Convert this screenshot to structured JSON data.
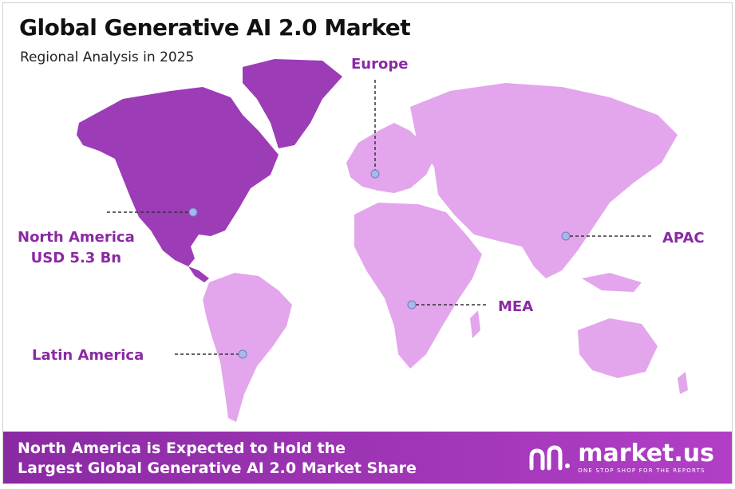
{
  "header": {
    "title": "Global Generative AI 2.0 Market",
    "subtitle": "Regional Analysis in 2025"
  },
  "regions": {
    "europe": "Europe",
    "north_america": "North America",
    "north_america_value": "USD 5.3 Bn",
    "apac": "APAC",
    "mea": "MEA",
    "latin_america": "Latin America"
  },
  "footer": {
    "line1": "North America is Expected to Hold the",
    "line2": "Largest Global Generative AI 2.0 Market Share"
  },
  "brand": {
    "name": "market.us",
    "tagline": "ONE STOP SHOP FOR THE REPORTS"
  },
  "colors": {
    "highlight": "#8a2aa3",
    "land": "#e3a5ec",
    "banner": "#9b31b5"
  },
  "icons": [
    "market-us-logo-icon"
  ]
}
